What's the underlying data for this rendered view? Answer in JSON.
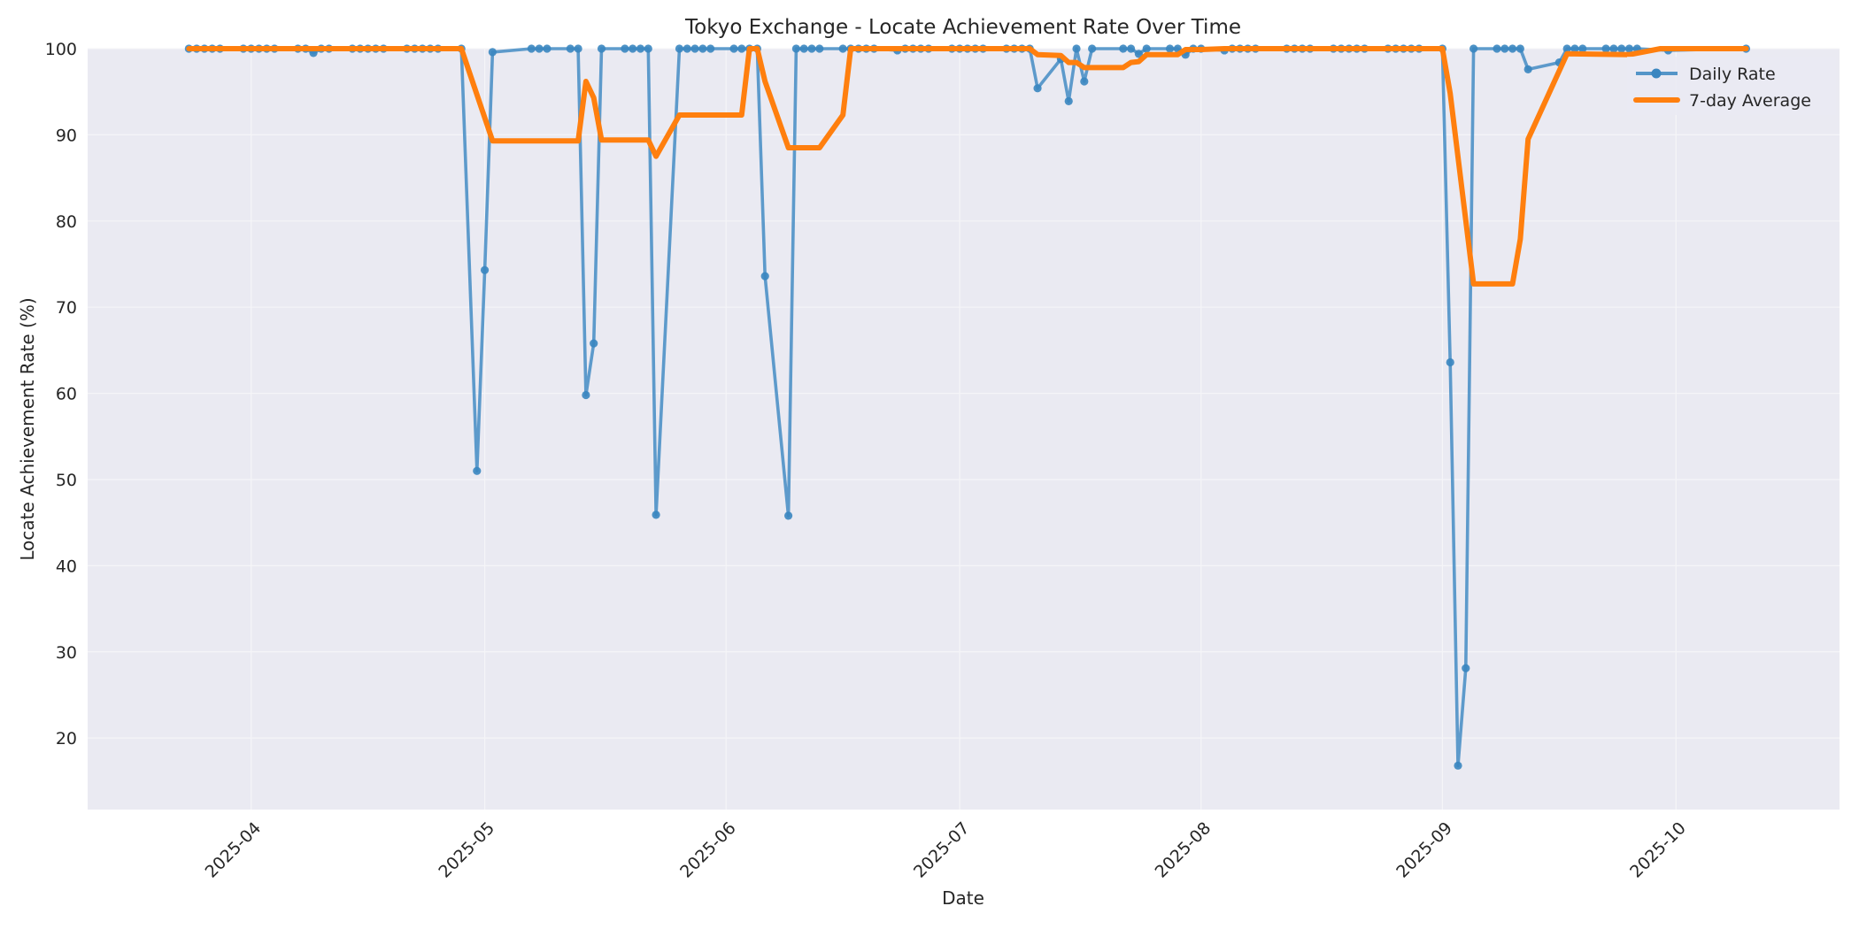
{
  "chart_data": {
    "type": "line",
    "title": "Tokyo Exchange - Locate Achievement Rate Over Time",
    "xlabel": "Date",
    "ylabel": "Locate Achievement Rate (%)",
    "ylim": [
      11.7,
      100
    ],
    "xlim": [
      "2025-03-11",
      "2025-10-22"
    ],
    "grid": true,
    "legend_position": "upper right",
    "x_ticks": [
      "2025-04",
      "2025-05",
      "2025-06",
      "2025-07",
      "2025-08",
      "2025-09",
      "2025-10"
    ],
    "y_ticks": [
      20,
      30,
      40,
      50,
      60,
      70,
      80,
      90,
      100
    ],
    "colors": {
      "daily": "#3a86c0",
      "avg": "#ff7f0e",
      "plot_bg": "#eaeaf2",
      "grid": "#f7f7fa"
    },
    "series": [
      {
        "name": "Daily Rate",
        "style": "line+markers",
        "points": [
          [
            "2025-03-24",
            100
          ],
          [
            "2025-03-25",
            100
          ],
          [
            "2025-03-26",
            100
          ],
          [
            "2025-03-27",
            100
          ],
          [
            "2025-03-28",
            100
          ],
          [
            "2025-03-31",
            100
          ],
          [
            "2025-04-01",
            100
          ],
          [
            "2025-04-02",
            100
          ],
          [
            "2025-04-03",
            100
          ],
          [
            "2025-04-04",
            100
          ],
          [
            "2025-04-07",
            100
          ],
          [
            "2025-04-08",
            100
          ],
          [
            "2025-04-09",
            99.5
          ],
          [
            "2025-04-10",
            100
          ],
          [
            "2025-04-11",
            100
          ],
          [
            "2025-04-14",
            100
          ],
          [
            "2025-04-15",
            100
          ],
          [
            "2025-04-16",
            100
          ],
          [
            "2025-04-17",
            100
          ],
          [
            "2025-04-18",
            100
          ],
          [
            "2025-04-21",
            100
          ],
          [
            "2025-04-22",
            100
          ],
          [
            "2025-04-23",
            100
          ],
          [
            "2025-04-24",
            100
          ],
          [
            "2025-04-25",
            100
          ],
          [
            "2025-04-28",
            100
          ],
          [
            "2025-04-30",
            51
          ],
          [
            "2025-05-01",
            74.3
          ],
          [
            "2025-05-02",
            99.6
          ],
          [
            "2025-05-07",
            100
          ],
          [
            "2025-05-08",
            100
          ],
          [
            "2025-05-09",
            100
          ],
          [
            "2025-05-12",
            100
          ],
          [
            "2025-05-13",
            100
          ],
          [
            "2025-05-14",
            59.8
          ],
          [
            "2025-05-15",
            65.8
          ],
          [
            "2025-05-16",
            100
          ],
          [
            "2025-05-19",
            100
          ],
          [
            "2025-05-20",
            100
          ],
          [
            "2025-05-21",
            100
          ],
          [
            "2025-05-22",
            100
          ],
          [
            "2025-05-23",
            45.9
          ],
          [
            "2025-05-26",
            100
          ],
          [
            "2025-05-27",
            100
          ],
          [
            "2025-05-28",
            100
          ],
          [
            "2025-05-29",
            100
          ],
          [
            "2025-05-30",
            100
          ],
          [
            "2025-06-02",
            100
          ],
          [
            "2025-06-03",
            100
          ],
          [
            "2025-06-04",
            100
          ],
          [
            "2025-06-05",
            100
          ],
          [
            "2025-06-06",
            73.6
          ],
          [
            "2025-06-09",
            45.8
          ],
          [
            "2025-06-10",
            100
          ],
          [
            "2025-06-11",
            100
          ],
          [
            "2025-06-12",
            100
          ],
          [
            "2025-06-13",
            100
          ],
          [
            "2025-06-16",
            100
          ],
          [
            "2025-06-17",
            100
          ],
          [
            "2025-06-18",
            100
          ],
          [
            "2025-06-19",
            100
          ],
          [
            "2025-06-20",
            100
          ],
          [
            "2025-06-23",
            99.8
          ],
          [
            "2025-06-24",
            100
          ],
          [
            "2025-06-25",
            100
          ],
          [
            "2025-06-26",
            100
          ],
          [
            "2025-06-27",
            100
          ],
          [
            "2025-06-30",
            100
          ],
          [
            "2025-07-01",
            100
          ],
          [
            "2025-07-02",
            100
          ],
          [
            "2025-07-03",
            100
          ],
          [
            "2025-07-04",
            100
          ],
          [
            "2025-07-07",
            100
          ],
          [
            "2025-07-08",
            100
          ],
          [
            "2025-07-09",
            100
          ],
          [
            "2025-07-10",
            100
          ],
          [
            "2025-07-11",
            95.4
          ],
          [
            "2025-07-14",
            98.8
          ],
          [
            "2025-07-15",
            93.9
          ],
          [
            "2025-07-16",
            100
          ],
          [
            "2025-07-17",
            96.2
          ],
          [
            "2025-07-18",
            100
          ],
          [
            "2025-07-22",
            100
          ],
          [
            "2025-07-23",
            100
          ],
          [
            "2025-07-24",
            99.4
          ],
          [
            "2025-07-25",
            100
          ],
          [
            "2025-07-28",
            100
          ],
          [
            "2025-07-29",
            100
          ],
          [
            "2025-07-30",
            99.3
          ],
          [
            "2025-07-31",
            100
          ],
          [
            "2025-08-01",
            100
          ],
          [
            "2025-08-04",
            99.8
          ],
          [
            "2025-08-05",
            100
          ],
          [
            "2025-08-06",
            100
          ],
          [
            "2025-08-07",
            100
          ],
          [
            "2025-08-08",
            100
          ],
          [
            "2025-08-12",
            100
          ],
          [
            "2025-08-13",
            100
          ],
          [
            "2025-08-14",
            100
          ],
          [
            "2025-08-15",
            100
          ],
          [
            "2025-08-18",
            100
          ],
          [
            "2025-08-19",
            100
          ],
          [
            "2025-08-20",
            100
          ],
          [
            "2025-08-21",
            100
          ],
          [
            "2025-08-22",
            100
          ],
          [
            "2025-08-25",
            100
          ],
          [
            "2025-08-26",
            100
          ],
          [
            "2025-08-27",
            100
          ],
          [
            "2025-08-28",
            100
          ],
          [
            "2025-08-29",
            100
          ],
          [
            "2025-09-01",
            100
          ],
          [
            "2025-09-02",
            63.6
          ],
          [
            "2025-09-03",
            16.8
          ],
          [
            "2025-09-04",
            28.1
          ],
          [
            "2025-09-05",
            100
          ],
          [
            "2025-09-08",
            100
          ],
          [
            "2025-09-09",
            100
          ],
          [
            "2025-09-10",
            100
          ],
          [
            "2025-09-11",
            100
          ],
          [
            "2025-09-12",
            97.6
          ],
          [
            "2025-09-16",
            98.4
          ],
          [
            "2025-09-17",
            100
          ],
          [
            "2025-09-18",
            100
          ],
          [
            "2025-09-19",
            100
          ],
          [
            "2025-09-22",
            100
          ],
          [
            "2025-09-23",
            100
          ],
          [
            "2025-09-24",
            100
          ],
          [
            "2025-09-25",
            100
          ],
          [
            "2025-09-26",
            100
          ],
          [
            "2025-09-30",
            99.8
          ],
          [
            "2025-10-10",
            100
          ]
        ]
      },
      {
        "name": "7-day Average",
        "style": "line",
        "points": [
          [
            "2025-03-24",
            100
          ],
          [
            "2025-04-28",
            100
          ],
          [
            "2025-05-02",
            89.3
          ],
          [
            "2025-05-13",
            89.3
          ],
          [
            "2025-05-14",
            96.2
          ],
          [
            "2025-05-15",
            94.3
          ],
          [
            "2025-05-16",
            89.4
          ],
          [
            "2025-05-22",
            89.4
          ],
          [
            "2025-05-23",
            87.5
          ],
          [
            "2025-05-26",
            92.3
          ],
          [
            "2025-06-03",
            92.3
          ],
          [
            "2025-06-04",
            100
          ],
          [
            "2025-06-05",
            100
          ],
          [
            "2025-06-06",
            96.2
          ],
          [
            "2025-06-09",
            88.5
          ],
          [
            "2025-06-13",
            88.5
          ],
          [
            "2025-06-16",
            92.3
          ],
          [
            "2025-06-17",
            100
          ],
          [
            "2025-07-10",
            100
          ],
          [
            "2025-07-11",
            99.3
          ],
          [
            "2025-07-14",
            99.2
          ],
          [
            "2025-07-15",
            98.4
          ],
          [
            "2025-07-16",
            98.4
          ],
          [
            "2025-07-17",
            97.8
          ],
          [
            "2025-07-22",
            97.8
          ],
          [
            "2025-07-23",
            98.4
          ],
          [
            "2025-07-24",
            98.5
          ],
          [
            "2025-07-25",
            99.3
          ],
          [
            "2025-07-29",
            99.3
          ],
          [
            "2025-07-30",
            99.9
          ],
          [
            "2025-08-01",
            99.9
          ],
          [
            "2025-08-04",
            100
          ],
          [
            "2025-09-01",
            100
          ],
          [
            "2025-09-02",
            94.8
          ],
          [
            "2025-09-05",
            72.7
          ],
          [
            "2025-09-10",
            72.7
          ],
          [
            "2025-09-11",
            77.9
          ],
          [
            "2025-09-12",
            89.5
          ],
          [
            "2025-09-17",
            99.4
          ],
          [
            "2025-09-25",
            99.3
          ],
          [
            "2025-09-29",
            100
          ],
          [
            "2025-10-10",
            100
          ]
        ]
      }
    ]
  },
  "legend": {
    "items": [
      {
        "label": "Daily Rate",
        "type": "line-marker"
      },
      {
        "label": "7-day Average",
        "type": "line"
      }
    ]
  }
}
